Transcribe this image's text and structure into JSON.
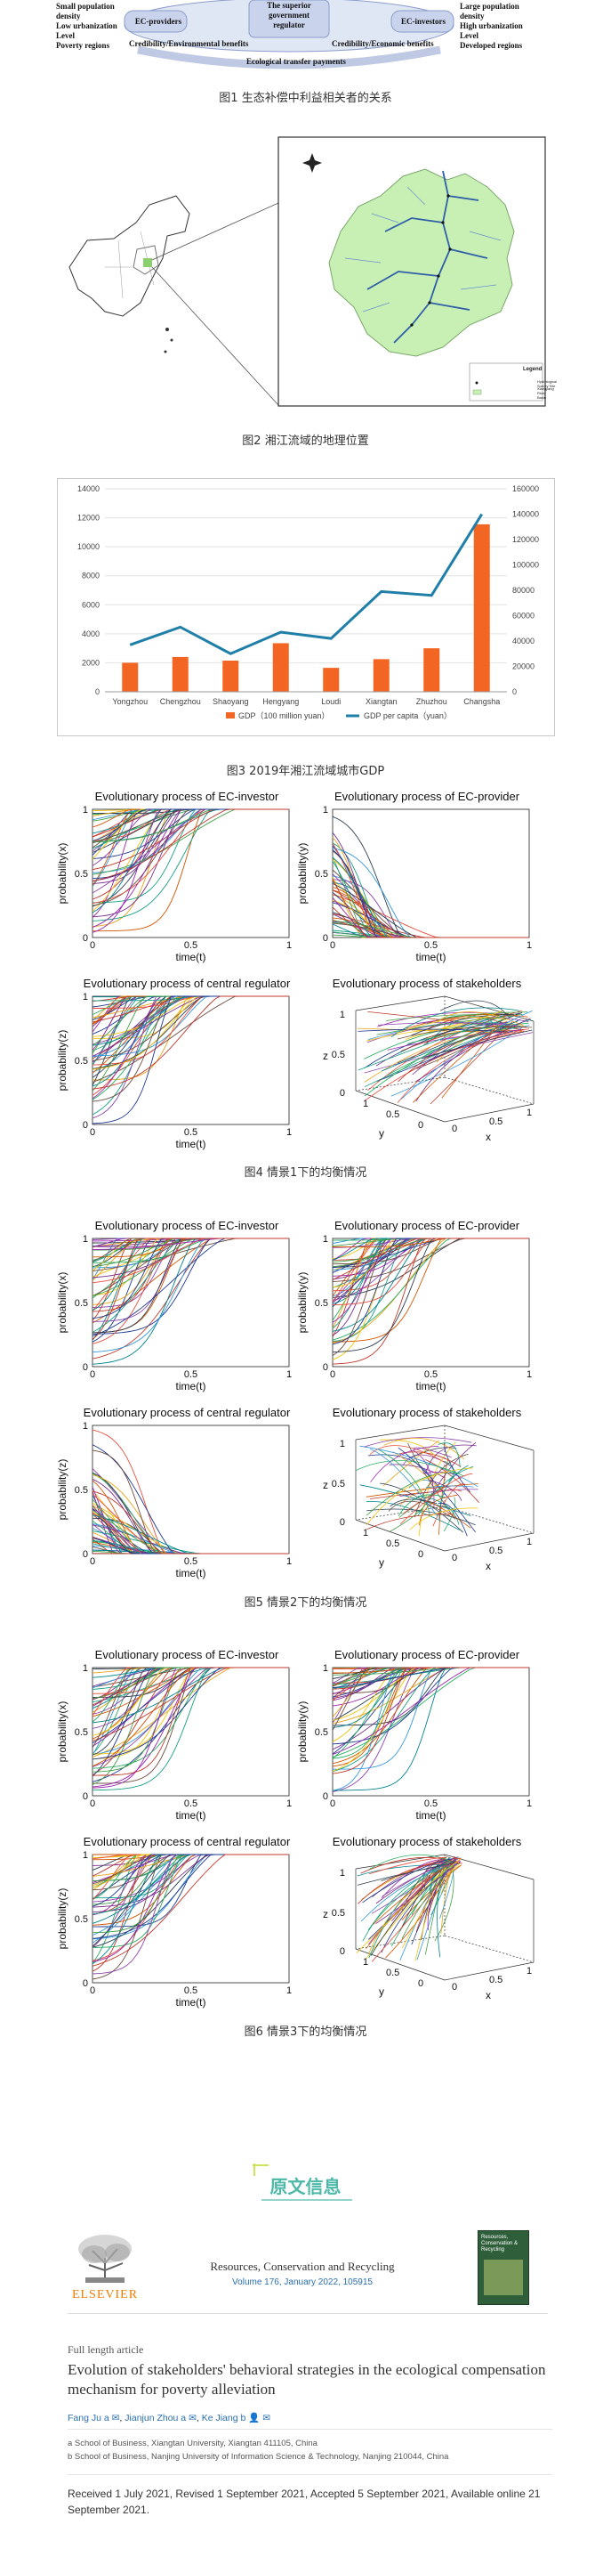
{
  "fig1": {
    "left_items": [
      "Small population",
      "density",
      "Low urbanization",
      "Level",
      "Poverty regions"
    ],
    "right_items": [
      "Large population",
      "density",
      "High urbanization",
      "Level",
      "Developed regions"
    ],
    "node_left": "EC-providers",
    "node_center": "The superior government regulator",
    "node_right": "EC-investors",
    "label_left": "Credibility/Environmental benefits",
    "label_right": "Credibility/Economic benefits",
    "label_bottom": "Ecological transfer payments",
    "caption": "图1 生态补偿中利益相关者的关系"
  },
  "fig2": {
    "legend_title": "Legend",
    "legend_items": [
      "Hydrological Survey Site",
      "Xiangjiang River Basin"
    ],
    "caption": "图2 湘江流域的地理位置"
  },
  "fig3": {
    "caption": "图3 2019年湘江流域城市GDP",
    "chart_data": {
      "type": "bar",
      "categories": [
        "Yongzhou",
        "Chengzhou",
        "Shaoyang",
        "Hengyang",
        "Loudi",
        "Xiangtan",
        "Zhuzhou",
        "Changsha"
      ],
      "series": [
        {
          "name": "GDP（100 million yuan）",
          "type": "bar",
          "axis": "left",
          "color": "#f26522",
          "values": [
            2000,
            2400,
            2150,
            3350,
            1650,
            2250,
            3000,
            11550
          ]
        },
        {
          "name": "GDP per capita（yuan）",
          "type": "line",
          "axis": "right",
          "color": "#1f7fa8",
          "values": [
            37000,
            51000,
            30000,
            47000,
            42000,
            79000,
            76000,
            140000
          ]
        }
      ],
      "ylim_left": [
        0,
        14000
      ],
      "yticks_left": [
        "0",
        "2000",
        "4000",
        "6000",
        "8000",
        "10000",
        "12000",
        "14000"
      ],
      "ylim_right": [
        0,
        160000
      ],
      "yticks_right": [
        "0",
        "20000",
        "40000",
        "60000",
        "80000",
        "100000",
        "120000",
        "140000",
        "160000"
      ],
      "legend_position": "bottom"
    }
  },
  "evo_figs": [
    {
      "caption": "图4 情景1下的均衡情况",
      "panels": [
        {
          "title": "Evolutionary process of EC-investor",
          "xlabel": "time(t)",
          "ylabel": "probability(x)",
          "trend": "up"
        },
        {
          "title": "Evolutionary process of EC-provider",
          "xlabel": "time(t)",
          "ylabel": "probability(y)",
          "trend": "down"
        },
        {
          "title": "Evolutionary process of central regulator",
          "xlabel": "time(t)",
          "ylabel": "probability(z)",
          "trend": "up"
        },
        {
          "title": "Evolutionary process of stakeholders",
          "xlabel": "x",
          "ylabel": "y",
          "zlabel": "z",
          "trend": "3d"
        }
      ]
    },
    {
      "caption": "图5 情景2下的均衡情况",
      "panels": [
        {
          "title": "Evolutionary process of EC-investor",
          "xlabel": "time(t)",
          "ylabel": "probability(x)",
          "trend": "up"
        },
        {
          "title": "Evolutionary process of EC-provider",
          "xlabel": "time(t)",
          "ylabel": "probability(y)",
          "trend": "up"
        },
        {
          "title": "Evolutionary process of central regulator",
          "xlabel": "time(t)",
          "ylabel": "probability(z)",
          "trend": "down"
        },
        {
          "title": "Evolutionary process of stakeholders",
          "xlabel": "x",
          "ylabel": "y",
          "zlabel": "z",
          "trend": "3d"
        }
      ]
    },
    {
      "caption": "图6 情景3下的均衡情况",
      "panels": [
        {
          "title": "Evolutionary process of EC-investor",
          "xlabel": "time(t)",
          "ylabel": "probability(x)",
          "trend": "up"
        },
        {
          "title": "Evolutionary process of EC-provider",
          "xlabel": "time(t)",
          "ylabel": "probability(y)",
          "trend": "up"
        },
        {
          "title": "Evolutionary process of central regulator",
          "xlabel": "time(t)",
          "ylabel": "probability(z)",
          "trend": "up"
        },
        {
          "title": "Evolutionary process of stakeholders",
          "xlabel": "x",
          "ylabel": "y",
          "zlabel": "z",
          "trend": "3d"
        }
      ]
    }
  ],
  "axis_ticks": {
    "t0": "0",
    "t05": "0.5",
    "t1": "1"
  },
  "source": {
    "heading": "原文信息",
    "publisher": "ELSEVIER",
    "journal": "Resources, Conservation and Recycling",
    "volume": "Volume 176, January 2022, 105915",
    "cover_title": "Resources, Conservation & Recycling",
    "article_type": "Full length article",
    "title": "Evolution of stakeholders' behavioral strategies in the ecological compensation mechanism for poverty alleviation",
    "authors": [
      "Fang Ju a ✉",
      "Jianjun Zhou a ✉",
      "Ke Jiang b 👤 ✉"
    ],
    "affiliations": [
      "a  School of Business, Xiangtan University, Xiangtan 411105, China",
      "b  School of Business, Nanjing University of Information Science & Technology, Nanjing 210044, China"
    ],
    "received": "Received 1 July 2021, Revised 1 September 2021, Accepted 5 September 2021, Available online 21 September 2021."
  },
  "colors": {
    "accent": "#4cb8a8",
    "bar": "#f26522",
    "line": "#1f7fa8",
    "link": "#2a6fb0",
    "map_fill": "#c8f0b4"
  }
}
